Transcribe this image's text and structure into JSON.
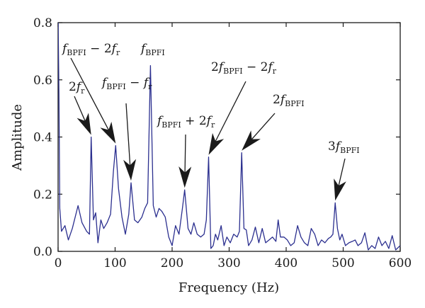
{
  "chart_data": {
    "type": "line",
    "title": "",
    "xlabel": "Frequency (Hz)",
    "ylabel": "Amplitude",
    "xlim": [
      0,
      600
    ],
    "ylim": [
      0,
      0.8
    ],
    "xticks": [
      0,
      100,
      200,
      300,
      400,
      500,
      600
    ],
    "xtick_labels": [
      "0",
      "100",
      "200",
      "300",
      "400",
      "500",
      "600"
    ],
    "yticks": [
      0,
      0.2,
      0.4,
      0.6,
      0.8
    ],
    "ytick_labels": [
      "0.0",
      "0.2",
      "0.4",
      "0.6",
      "0.8"
    ],
    "grid": false,
    "series": [
      {
        "color": "#2b2f8f",
        "x": [
          0,
          1.5,
          3,
          6,
          12,
          18,
          25,
          35,
          42,
          50,
          55,
          58,
          62,
          66,
          70,
          75,
          80,
          86,
          92,
          97,
          101,
          106,
          112,
          118,
          124,
          128,
          134,
          140,
          147,
          152,
          157,
          162,
          167,
          172,
          177,
          182,
          188,
          194,
          200,
          206,
          212,
          218,
          222,
          228,
          233,
          238,
          244,
          250,
          256,
          260,
          264,
          268,
          272,
          276,
          280,
          286,
          291,
          296,
          302,
          308,
          314,
          318,
          322,
          326,
          330,
          334,
          340,
          346,
          352,
          358,
          364,
          370,
          376,
          382,
          386,
          390,
          396,
          402,
          408,
          414,
          420,
          426,
          432,
          438,
          444,
          450,
          456,
          462,
          468,
          474,
          478,
          482,
          486,
          490,
          494,
          498,
          504,
          510,
          516,
          521,
          526,
          532,
          538,
          544,
          550,
          556,
          562,
          568,
          574,
          580,
          586,
          592,
          600
        ],
        "y": [
          0.82,
          0.55,
          0.15,
          0.07,
          0.09,
          0.04,
          0.08,
          0.16,
          0.1,
          0.07,
          0.06,
          0.4,
          0.11,
          0.135,
          0.03,
          0.11,
          0.08,
          0.1,
          0.13,
          0.28,
          0.37,
          0.22,
          0.12,
          0.06,
          0.13,
          0.24,
          0.11,
          0.1,
          0.12,
          0.15,
          0.17,
          0.65,
          0.16,
          0.12,
          0.15,
          0.14,
          0.12,
          0.05,
          0.02,
          0.09,
          0.06,
          0.15,
          0.215,
          0.08,
          0.06,
          0.1,
          0.06,
          0.05,
          0.06,
          0.11,
          0.33,
          0.01,
          0.02,
          0.06,
          0.04,
          0.09,
          0.02,
          0.05,
          0.03,
          0.06,
          0.05,
          0.07,
          0.345,
          0.08,
          0.075,
          0.02,
          0.04,
          0.085,
          0.03,
          0.08,
          0.03,
          0.04,
          0.05,
          0.035,
          0.11,
          0.05,
          0.05,
          0.04,
          0.02,
          0.03,
          0.09,
          0.05,
          0.03,
          0.02,
          0.08,
          0.06,
          0.02,
          0.04,
          0.03,
          0.045,
          0.05,
          0.06,
          0.17,
          0.08,
          0.04,
          0.06,
          0.02,
          0.03,
          0.035,
          0.04,
          0.02,
          0.03,
          0.065,
          0.005,
          0.02,
          0.01,
          0.05,
          0.02,
          0.035,
          0.01,
          0.055,
          0.005,
          0.02
        ]
      }
    ],
    "annotations": [
      {
        "id": "ann-2fr",
        "parts": [
          "2",
          "f",
          "r",
          ""
        ],
        "x": 58,
        "y": 0.4
      },
      {
        "id": "ann-bpfi-minus-2fr",
        "parts": [
          "f",
          "BPFI",
          " − 2",
          "f",
          "r"
        ],
        "x": 101,
        "y": 0.37
      },
      {
        "id": "ann-bpfi-minus-fr",
        "parts": [
          "f",
          "BPFI",
          " − ",
          "f",
          "r"
        ],
        "x": 128,
        "y": 0.24
      },
      {
        "id": "ann-bpfi",
        "parts": [
          "f",
          "BPFI"
        ],
        "x": 162,
        "y": 0.65
      },
      {
        "id": "ann-bpfi-plus-2fr",
        "parts": [
          "f",
          "BPFI",
          " + 2",
          "f",
          "r"
        ],
        "x": 222,
        "y": 0.215
      },
      {
        "id": "ann-2bpfi-minus-2fr",
        "parts": [
          "2",
          "f",
          "BPFI",
          " − 2",
          "f",
          "r"
        ],
        "x": 264,
        "y": 0.33
      },
      {
        "id": "ann-2bpfi",
        "parts": [
          "2",
          "f",
          "BPFI"
        ],
        "x": 322,
        "y": 0.345
      },
      {
        "id": "ann-3bpfi",
        "parts": [
          "3",
          "f",
          "BPFI"
        ],
        "x": 486,
        "y": 0.17
      }
    ],
    "text": {
      "ann_2fr_coef": "2",
      "ann_2fr_f": "f",
      "ann_2fr_sub": "r",
      "ann_b1_f": "f",
      "ann_b1_sub": "BPFI",
      "ann_b1_mid": " − 2",
      "ann_b1_f2": "f",
      "ann_b1_sub2": "r",
      "ann_b2_f": "f",
      "ann_b2_sub": "BPFI",
      "ann_b2_mid": " − ",
      "ann_b2_f2": "f",
      "ann_b2_sub2": "r",
      "ann_b3_f": "f",
      "ann_b3_sub": "BPFI",
      "ann_b4_f": "f",
      "ann_b4_sub": "BPFI",
      "ann_b4_mid": " + 2",
      "ann_b4_f2": "f",
      "ann_b4_sub2": "r",
      "ann_b5_coef": "2",
      "ann_b5_f": "f",
      "ann_b5_sub": "BPFI",
      "ann_b5_mid": " − 2",
      "ann_b5_f2": "f",
      "ann_b5_sub2": "r",
      "ann_b6_coef": "2",
      "ann_b6_f": "f",
      "ann_b6_sub": "BPFI",
      "ann_b7_coef": "3",
      "ann_b7_f": "f",
      "ann_b7_sub": "BPFI"
    }
  }
}
